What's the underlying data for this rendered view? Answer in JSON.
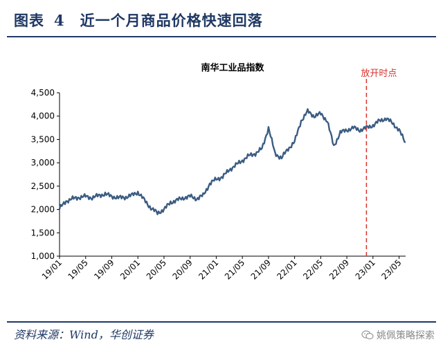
{
  "figure": {
    "label": "图表",
    "number": "4",
    "caption": "近一个月商品价格快速回落",
    "source": "资料来源：Wind，华创证券",
    "watermark": "姚佩策略探索",
    "watermark_icon": "wechat-icon"
  },
  "colors": {
    "accent": "#1f3864",
    "series": "#3b5c82",
    "marker": "#d9312b"
  },
  "chart_data": {
    "type": "line",
    "title": "南华工业品指数",
    "xlabel": "",
    "ylabel": "",
    "x_range": [
      "2019-01",
      "2023-06"
    ],
    "ylim": [
      1000,
      4500
    ],
    "y_ticks": [
      1000,
      1500,
      2000,
      2500,
      3000,
      3500,
      4000,
      4500
    ],
    "y_tick_labels": [
      "1,000",
      "1,500",
      "2,000",
      "2,500",
      "3,000",
      "3,500",
      "4,000",
      "4,500"
    ],
    "x_ticks": [
      "2019-01",
      "2019-05",
      "2019-09",
      "2020-01",
      "2020-05",
      "2020-09",
      "2021-01",
      "2021-05",
      "2021-09",
      "2022-01",
      "2022-05",
      "2022-09",
      "2023-01",
      "2023-05"
    ],
    "x_tick_labels": [
      "19/01",
      "19/05",
      "19/09",
      "20/01",
      "20/05",
      "20/09",
      "21/01",
      "21/05",
      "21/09",
      "22/01",
      "22/05",
      "22/09",
      "23/01",
      "23/05"
    ],
    "grid": false,
    "legend": false,
    "annotation": {
      "label": "放开时点",
      "x": "2022-12",
      "style": "dashed-vertical"
    },
    "series": [
      {
        "x": [
          "2019-01",
          "2019-02",
          "2019-03",
          "2019-04",
          "2019-05",
          "2019-06",
          "2019-07",
          "2019-08",
          "2019-09",
          "2019-10",
          "2019-11",
          "2019-12",
          "2020-01",
          "2020-02",
          "2020-03",
          "2020-04",
          "2020-05",
          "2020-06",
          "2020-07",
          "2020-08",
          "2020-09",
          "2020-10",
          "2020-11",
          "2020-12",
          "2021-01",
          "2021-02",
          "2021-03",
          "2021-04",
          "2021-05",
          "2021-06",
          "2021-07",
          "2021-08",
          "2021-09",
          "2021-10",
          "2021-11",
          "2021-12",
          "2022-01",
          "2022-02",
          "2022-03",
          "2022-04",
          "2022-05",
          "2022-06",
          "2022-07",
          "2022-08",
          "2022-09",
          "2022-10",
          "2022-11",
          "2022-12",
          "2023-01",
          "2023-02",
          "2023-03",
          "2023-04",
          "2023-05",
          "2023-06"
        ],
        "y": [
          2020,
          2180,
          2230,
          2260,
          2280,
          2250,
          2300,
          2330,
          2280,
          2250,
          2260,
          2300,
          2370,
          2200,
          2030,
          1920,
          2000,
          2150,
          2200,
          2250,
          2280,
          2230,
          2300,
          2550,
          2650,
          2700,
          2850,
          2950,
          3050,
          3150,
          3200,
          3300,
          3750,
          3200,
          3100,
          3300,
          3450,
          3900,
          4100,
          4000,
          4050,
          3900,
          3350,
          3650,
          3700,
          3750,
          3700,
          3750,
          3800,
          3900,
          3950,
          3850,
          3700,
          3420
        ]
      }
    ]
  }
}
